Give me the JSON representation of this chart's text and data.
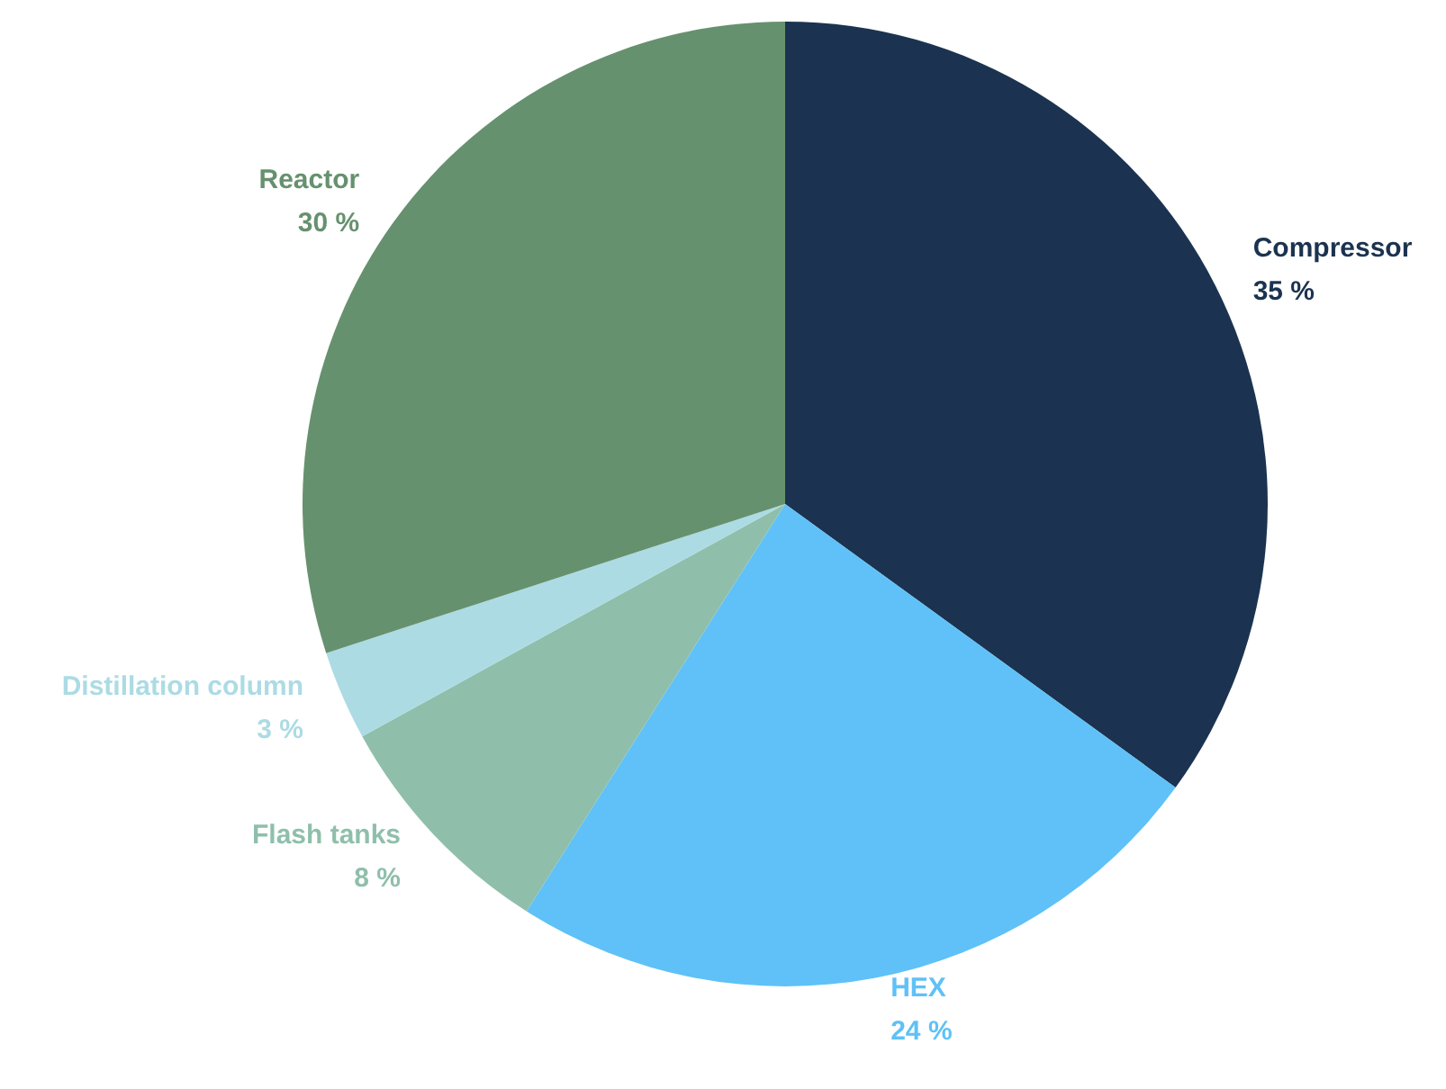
{
  "chart_data": {
    "type": "pie",
    "categories": [
      "Compressor",
      "HEX",
      "Flash tanks",
      "Distillation column",
      "Reactor"
    ],
    "values": [
      35,
      24,
      8,
      3,
      30
    ],
    "value_labels": [
      "35 %",
      "24 %",
      "8 %",
      "3 %",
      "30 %"
    ],
    "colors": [
      "#1b3350",
      "#5fc1f7",
      "#8fbfab",
      "#acdbe4",
      "#66916e"
    ],
    "legend": false
  }
}
